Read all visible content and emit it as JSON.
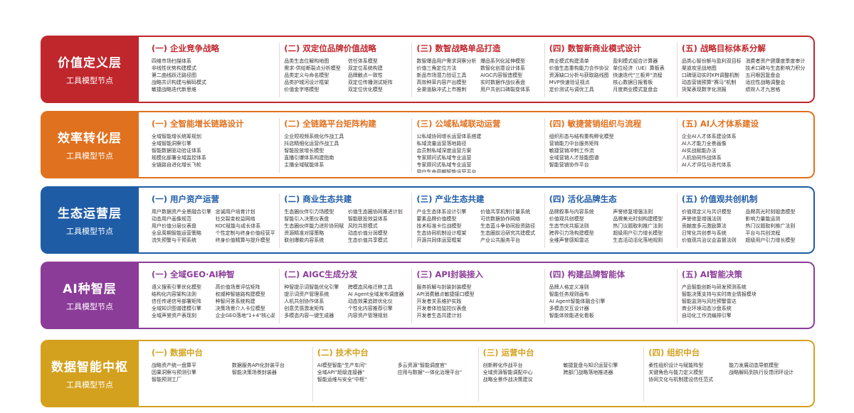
{
  "layers": [
    {
      "title": "价值定义层",
      "subtitle": "工具模型节点",
      "columns": [
        {
          "heading": "(一) 企业竞争战略",
          "items": [
            [
              "四维市场扫描体系",
              "非线性优势构建模式",
              "第二曲线跃迁路径图",
              "战略共识构建与解码模式",
              "敏捷战略迭代新思维"
            ]
          ]
        },
        {
          "heading": "(二) 双定位品牌价值战略",
          "items": [
            [
              "品类生态位解构地图",
              "需求-供给断裂点分析模型",
              "品类定义与命名模型",
              "品类护城河设计框架",
              "价值金字塔模型"
            ],
            [
              "信任体系模型",
              "双定位系统构建",
              "品牌触点一致性",
              "双定位传播测试矩阵",
              "双定位优化模型"
            ]
          ]
        },
        {
          "heading": "(三) 数智战略单品打造",
          "items": [
            [
              "数智爆品用户需求洞察分析系统",
              "价值三角定位方法",
              "新品市场潜力验证工具",
              "高效种草内容产出模型",
              "全渠道脉冲式上市推刺"
            ],
            [
              "爆品系列化延伸模型",
              "数智化创意设计体系",
              "AIGC内容智造模型",
              "实时数据作战仪表盘",
              "用户共创口碑裂变体系"
            ]
          ]
        },
        {
          "heading": "(四) 数智新商业模式设计",
          "items": [
            [
              "商业模式构建清单",
              "价值生态重构能力合作协议模板",
              "资源缺口分析与获取路线图",
              "MVP快速验证视点",
              "定价测试与调优工具"
            ],
            [
              "盈利模式组合计算器",
              "单位经济（UE）算板表",
              "快速迭代\"三板斧\"流程",
              "核心数据日报看板",
              "月度商业模式复盘会"
            ]
          ]
        },
        {
          "heading": "(五) 战略目标体系分解",
          "items": [
            [
              "品类心智份额与盈利双目标模型",
              "渠道攻坚战地图",
              "口碑驱动实时KPI调整机制",
              "动态营销预算\"赛马\"机制",
              "货架表现数字化测报"
            ],
            [
              "消费者资产健康度季度审计",
              "技术口碑与生态影响力积分",
              "五问根因复盘会",
              "适应性战略调整会",
              "绩效人才九宫格"
            ]
          ]
        }
      ]
    },
    {
      "title": "效率转化层",
      "subtitle": "工具模型节点",
      "columns": [
        {
          "heading": "(一) 全智能增长链路设计",
          "items": [
            [
              "全域智能增长统筹规划",
              "全域智能洞察引擎",
              "智能数据驱动验证体系",
              "规模化部署全域监控体系",
              "全链路自进化增长飞轮"
            ]
          ]
        },
        {
          "heading": "(二) 全链路平台矩阵构建",
          "items": [
            [
              "企业短视频系统化作战工具",
              "抖店精细化运营作战工具",
              "智能投放增长模型",
              "直播引爆体系构建指南",
              "主播全域赋能体系"
            ]
          ]
        },
        {
          "heading": "(三) 公域私域联动运营",
          "items": [
            [
              "公私域协同增长运营体系搭建",
              "私域流量运营落地路径",
              "会员制私域深度运营方案",
              "专家顾问式私域专业运营",
              "专家顾问式私域专业运营",
              "用户生命周期智能运营平台"
            ]
          ]
        },
        {
          "heading": "(四) 敏捷营销组织与流程",
          "items": [
            [
              "组织形态与结构重构孵化模型",
              "营销能力中台服务矩阵",
              "敏捷营销冲刺工作流",
              "全域营销人才技能图谱",
              "智能营销协作平台"
            ]
          ]
        },
        {
          "heading": "(五) AI人才体系建设",
          "items": [
            [
              "企业AI人才体系建设体系",
              "AI人才能力全景画像",
              "AI实战赋能办法",
              "人机协同作战体系",
              "AI人才评估与迭代体系"
            ]
          ]
        }
      ]
    },
    {
      "title": "生态运营层",
      "subtitle": "工具模型节点",
      "columns": [
        {
          "heading": "(一) 用户资产运营",
          "items": [
            [
              "用户数据资产全景融合引擎",
              "动态用户画像规范",
              "用户价值分层仪表盘",
              "全息周期智能运营策略",
              "流失预警与干预系统"
            ],
            [
              "忠诚用户培育计划",
              "社交裂变权益网络",
              "KOC赋能与成长体系",
              "个性定制与终身价值经营平台",
              "终身价值精算与提升模型"
            ]
          ]
        },
        {
          "heading": "(二) 商业生态共建",
          "items": [
            [
              "生态圈伙伴引力场模型",
              "智能引入决策仪表盘",
              "生态圈伙伴能力进阶协同赋能",
              "资源精准对接策略",
              "联创爆款内容系统"
            ],
            [
              "价值生态圈协同推进计划",
              "智能联投效益体系",
              "风险共担模式",
              "动态价值分润模型",
              "生态价值共享模式"
            ]
          ]
        },
        {
          "heading": "(三) 产业生态共建",
          "items": [
            [
              "产业生态体系设计引擎",
              "要素品牌价值模型",
              "技术标准卡位战模型",
              "生态协同机制设计框架",
              "开源共同体运营框架"
            ],
            [
              "价值共享机制计量系统",
              "可信数据协作网络",
              "生态蓝斗争协同投资路径",
              "生态圈前沿研究共建模式",
              "产业公共服务平台"
            ]
          ]
        },
        {
          "heading": "(四) 活化品牌生态",
          "items": [
            [
              "品牌叙事与内容系统",
              "价值观共创模型",
              "生态节庆共振法则",
              "跨界引力场构建模型",
              "全维声誉感知雷达"
            ],
            [
              "声誉修复增强法则",
              "品牌美光时刻构建模型",
              "热门议题取利推广法则",
              "超级用户引力增长模型",
              "生态活动活化落地规则"
            ]
          ]
        },
        {
          "heading": "(五) 价值观共创机制",
          "items": [
            [
              "价值观定义与共识模型",
              "声誉修复增强法则",
              "贡献度多元激励算法",
              "日常化共创参与系统",
              "价值观共治议会监督法则"
            ],
            [
              "品牌高光时刻锻造模型",
              "影响力量能运测",
              "热门议题取利推广法则",
              "平台与共创流程",
              "超级用户引力增长模型"
            ]
          ]
        }
      ]
    },
    {
      "title": "AI种智层",
      "subtitle": "工具模型节点",
      "columns": [
        {
          "heading": "(一) 全域GEO·AI种智",
          "items": [
            [
              "语义搜索引擎优化模型",
              "结构化内容架构法则",
              "信任传递信号部署矩阵",
              "全域知识图谱建模引擎",
              "全域声誉资产表现刻"
            ],
            [
              "高价值场景评估矩阵",
              "权威种智链路构建模型",
              "种智问答系统构建",
              "决策场景介入卡位模型",
              "企业GEO落地\"1+4\"核心路径"
            ]
          ]
        },
        {
          "heading": "(二) AIGC生成分发",
          "items": [
            [
              "种智提示词智能优化引擎",
              "提示词资产管理系统",
              "人机共创协作体系",
              "创意灵感激发矩阵",
              "多模态内容一键生成器"
            ],
            [
              "跨模态风格迁移工具",
              "AI Agent全域发布调度器",
              "动态效果追踪优化仪",
              "个性化内容推荐引擎",
              "内容资产管理规划"
            ]
          ]
        },
        {
          "heading": "(三) API封装接入",
          "items": [
            [
              "服务拆解与封装封装模型",
              "API消费触点敏捷接口模型",
              "开发者关系维护实践",
              "开发者体验监控仪表盘",
              "开发者生态共建计划"
            ]
          ]
        },
        {
          "heading": "(四) 构建品牌智能体",
          "items": [
            [
              "品牌人格定义准则",
              "智能任务规则画布",
              "AI Agent智能体融合引擎",
              "多模态交互设计器",
              "智能体效能进化看板"
            ]
          ]
        },
        {
          "heading": "(五) AI智能决策",
          "items": [
            [
              "产品智能创新与研发预测系统",
              "智能决策支持与实时商业情报模块",
              "智能监测与风险预警雷达",
              "商业环境动态沙盘系统",
              "自动化工作流编排引擎"
            ]
          ]
        }
      ]
    },
    {
      "title": "数据智能中枢",
      "subtitle": "工具模型节点",
      "columns": [
        {
          "heading": "(一) 数据中台",
          "items": [
            [
              "战略资产统一盘算平",
              "因果洞察与预测引擎",
              "智能预测工厂"
            ],
            [
              "数据服务API化封装平台",
              "智能决策场景封装器"
            ]
          ]
        },
        {
          "heading": "(二) 技术中台",
          "items": [
            [
              "AI模型智能\"生产车间\"",
              "全域API\"超级连接器\"",
              "智能运维与安全\"中枢\""
            ],
            [
              "多云资源\"智能调度官\"",
              "应用与数据\"一体化治理平台\""
            ]
          ]
        },
        {
          "heading": "(三) 运营中台",
          "items": [
            [
              "创新孵化作战平台",
              "全域资源智能调配中心",
              "战略全景作战决策建议"
            ],
            [
              "敏捷复盘与知识运营引擎",
              "跨部门战略落地推进器"
            ]
          ]
        },
        {
          "heading": "(四) 组织中台",
          "items": [
            [
              "柔性组织设计与赋能阵型",
              "关键角色与能力定义模型",
              "协同文化与机制建设信任范式"
            ],
            [
              "能力发展动态导航模型",
              "战略解码到执行反馈闭环设计"
            ]
          ]
        }
      ]
    }
  ]
}
